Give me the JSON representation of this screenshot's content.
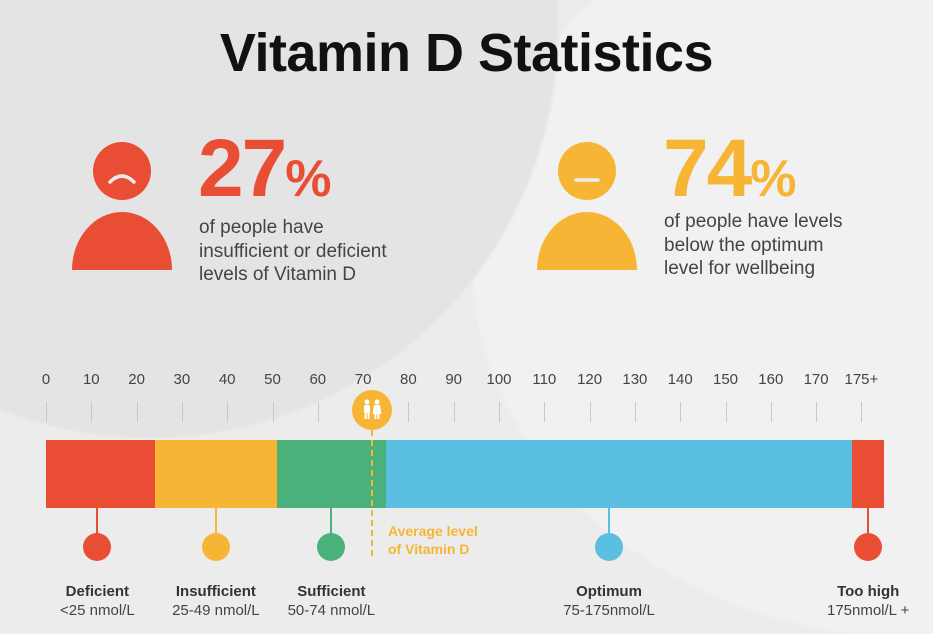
{
  "title": "Vitamin D Statistics",
  "colors": {
    "red": "#e94e35",
    "orange": "#f7b535",
    "green": "#4bb17b",
    "blue": "#5bbfe1",
    "text": "#333333"
  },
  "stats": [
    {
      "icon": "sad-person-icon",
      "value": "27",
      "unit": "%",
      "lines": [
        "of people have",
        "insufficient or deficient",
        "levels of Vitamin D"
      ]
    },
    {
      "icon": "neutral-person-icon",
      "value": "74",
      "unit": "%",
      "lines": [
        "of people have levels",
        "below the optimum",
        "level for wellbeing"
      ]
    }
  ],
  "scale": {
    "ticks": [
      "0",
      "10",
      "20",
      "30",
      "40",
      "50",
      "60",
      "70",
      "80",
      "90",
      "100",
      "110",
      "120",
      "130",
      "140",
      "150",
      "160",
      "170",
      "175+"
    ],
    "average": {
      "value": 72,
      "icon": "couple-icon",
      "label_lines": [
        "Average level",
        "of Vitamin D"
      ]
    },
    "categories": [
      {
        "name": "Deficient",
        "range": "<25 nmol/L",
        "from": 0,
        "to": 24
      },
      {
        "name": "Insufficient",
        "range": "25-49 nmol/L",
        "from": 24,
        "to": 51
      },
      {
        "name": "Sufficient",
        "range": "50-74 nmol/L",
        "from": 51,
        "to": 75
      },
      {
        "name": "Optimum",
        "range": "75-175nmol/L",
        "from": 75,
        "to": 178
      },
      {
        "name": "Too high",
        "range": "175nmol/L +",
        "from": 178,
        "to": 185
      }
    ]
  }
}
